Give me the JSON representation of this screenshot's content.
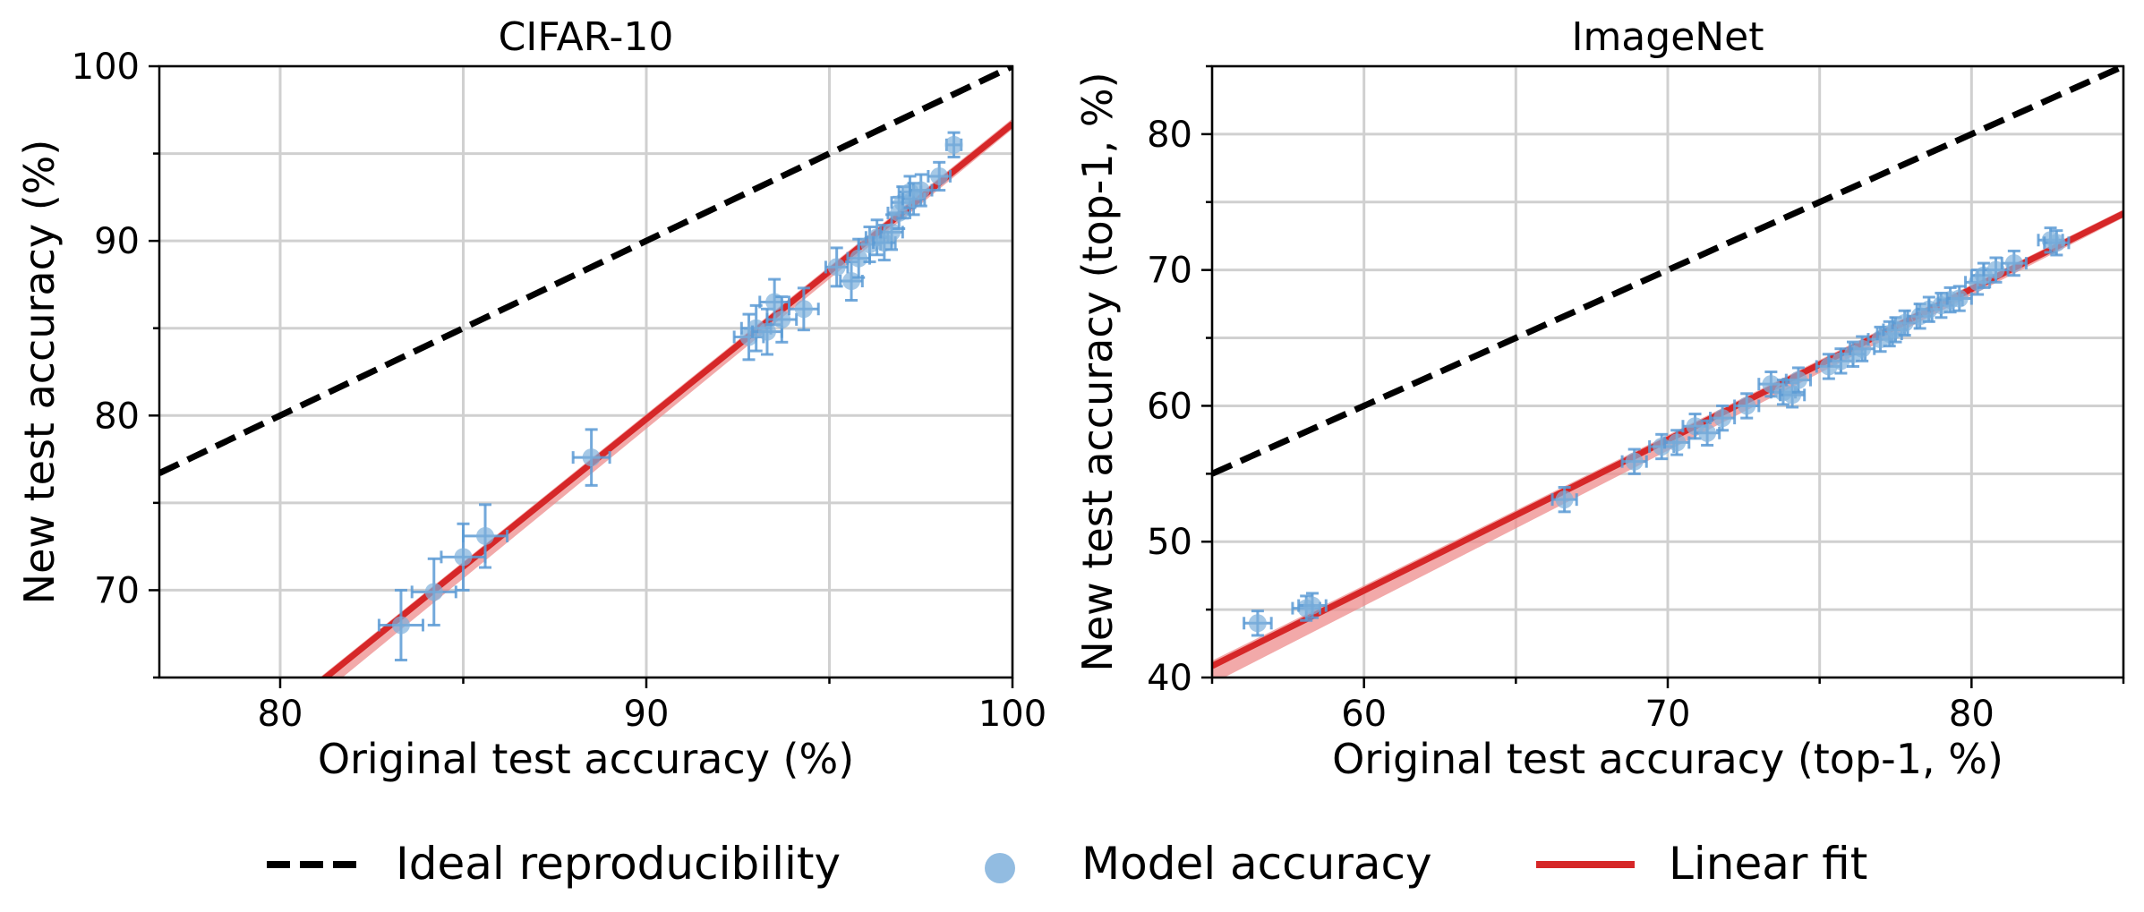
{
  "legend": {
    "ideal_label": "Ideal reproducibility",
    "model_label": "Model accuracy",
    "fit_label": "Linear fit"
  },
  "colors": {
    "ideal": "#000000",
    "points": "#5B9BD5",
    "point_fill": "#7FB0DC",
    "fit": "#D62728",
    "fit_band": "#EE8C8C",
    "grid": "#D0D0D0"
  },
  "chart_data": [
    {
      "type": "scatter",
      "title": "CIFAR-10",
      "xlabel": "Original test accuracy (%)",
      "ylabel": "New test accuracy (%)",
      "xlim": [
        76.7,
        100
      ],
      "ylim": [
        65,
        100
      ],
      "xticks": [
        80,
        90,
        100
      ],
      "yticks": [
        70,
        80,
        90,
        100
      ],
      "grid": true,
      "ideal_line": {
        "slope": 1,
        "intercept": 0
      },
      "fit_line": {
        "slope": 1.69,
        "intercept": -72.3,
        "band_low_x": 82,
        "band_width": 0.9
      },
      "points": [
        {
          "x": 83.3,
          "y": 68.0,
          "xerr": 0.6,
          "yerr": 2.0
        },
        {
          "x": 84.2,
          "y": 69.9,
          "xerr": 0.6,
          "yerr": 1.9
        },
        {
          "x": 85.0,
          "y": 71.9,
          "xerr": 0.6,
          "yerr": 1.9
        },
        {
          "x": 85.6,
          "y": 73.1,
          "xerr": 0.6,
          "yerr": 1.8
        },
        {
          "x": 88.5,
          "y": 77.6,
          "xerr": 0.5,
          "yerr": 1.6
        },
        {
          "x": 92.8,
          "y": 84.5,
          "xerr": 0.4,
          "yerr": 1.3
        },
        {
          "x": 93.0,
          "y": 85.0,
          "xerr": 0.4,
          "yerr": 1.3
        },
        {
          "x": 93.3,
          "y": 84.8,
          "xerr": 0.4,
          "yerr": 1.3
        },
        {
          "x": 93.5,
          "y": 86.5,
          "xerr": 0.4,
          "yerr": 1.3
        },
        {
          "x": 93.7,
          "y": 85.5,
          "xerr": 0.4,
          "yerr": 1.3
        },
        {
          "x": 94.3,
          "y": 86.1,
          "xerr": 0.4,
          "yerr": 1.2
        },
        {
          "x": 95.2,
          "y": 88.5,
          "xerr": 0.3,
          "yerr": 1.1
        },
        {
          "x": 95.6,
          "y": 87.7,
          "xerr": 0.3,
          "yerr": 1.1
        },
        {
          "x": 95.8,
          "y": 89.0,
          "xerr": 0.3,
          "yerr": 1.1
        },
        {
          "x": 96.1,
          "y": 89.8,
          "xerr": 0.3,
          "yerr": 1.0
        },
        {
          "x": 96.3,
          "y": 90.2,
          "xerr": 0.3,
          "yerr": 1.0
        },
        {
          "x": 96.5,
          "y": 89.9,
          "xerr": 0.3,
          "yerr": 1.0
        },
        {
          "x": 96.7,
          "y": 90.5,
          "xerr": 0.3,
          "yerr": 1.0
        },
        {
          "x": 96.9,
          "y": 91.6,
          "xerr": 0.3,
          "yerr": 0.9
        },
        {
          "x": 97.0,
          "y": 92.2,
          "xerr": 0.3,
          "yerr": 0.9
        },
        {
          "x": 97.2,
          "y": 92.8,
          "xerr": 0.3,
          "yerr": 0.9
        },
        {
          "x": 97.3,
          "y": 92.4,
          "xerr": 0.3,
          "yerr": 0.9
        },
        {
          "x": 97.5,
          "y": 92.9,
          "xerr": 0.3,
          "yerr": 0.9
        },
        {
          "x": 98.0,
          "y": 93.7,
          "xerr": 0.3,
          "yerr": 0.8
        },
        {
          "x": 98.4,
          "y": 95.5,
          "xerr": 0.2,
          "yerr": 0.7
        }
      ]
    },
    {
      "type": "scatter",
      "title": "ImageNet",
      "xlabel": "Original test accuracy (top-1, %)",
      "ylabel": "New test accuracy (top-1, %)",
      "xlim": [
        55,
        85
      ],
      "ylim": [
        40,
        85
      ],
      "xticks": [
        60,
        70,
        80
      ],
      "yticks": [
        40,
        50,
        60,
        70,
        80
      ],
      "grid": true,
      "ideal_line": {
        "slope": 1,
        "intercept": 0
      },
      "fit_line": {
        "slope": 1.11,
        "intercept": -20.2,
        "band_low_x": 55,
        "band_width": 1.3
      },
      "points": [
        {
          "x": 56.5,
          "y": 44.0,
          "xerr": 0.45,
          "yerr": 0.9
        },
        {
          "x": 58.1,
          "y": 45.1,
          "xerr": 0.45,
          "yerr": 0.9
        },
        {
          "x": 58.3,
          "y": 45.3,
          "xerr": 0.45,
          "yerr": 0.9
        },
        {
          "x": 66.6,
          "y": 53.1,
          "xerr": 0.4,
          "yerr": 0.9
        },
        {
          "x": 68.9,
          "y": 55.9,
          "xerr": 0.4,
          "yerr": 0.9
        },
        {
          "x": 69.8,
          "y": 57.0,
          "xerr": 0.4,
          "yerr": 0.9
        },
        {
          "x": 70.3,
          "y": 57.3,
          "xerr": 0.4,
          "yerr": 0.9
        },
        {
          "x": 70.9,
          "y": 58.5,
          "xerr": 0.4,
          "yerr": 0.9
        },
        {
          "x": 71.3,
          "y": 58.0,
          "xerr": 0.4,
          "yerr": 0.9
        },
        {
          "x": 71.8,
          "y": 59.1,
          "xerr": 0.4,
          "yerr": 0.9
        },
        {
          "x": 72.6,
          "y": 60.0,
          "xerr": 0.4,
          "yerr": 0.9
        },
        {
          "x": 73.4,
          "y": 61.6,
          "xerr": 0.4,
          "yerr": 0.9
        },
        {
          "x": 73.8,
          "y": 61.0,
          "xerr": 0.4,
          "yerr": 0.9
        },
        {
          "x": 74.1,
          "y": 60.8,
          "xerr": 0.4,
          "yerr": 0.9
        },
        {
          "x": 74.3,
          "y": 61.9,
          "xerr": 0.4,
          "yerr": 0.9
        },
        {
          "x": 75.3,
          "y": 62.9,
          "xerr": 0.4,
          "yerr": 0.9
        },
        {
          "x": 75.7,
          "y": 63.3,
          "xerr": 0.4,
          "yerr": 0.9
        },
        {
          "x": 76.1,
          "y": 63.8,
          "xerr": 0.4,
          "yerr": 0.9
        },
        {
          "x": 76.4,
          "y": 64.2,
          "xerr": 0.4,
          "yerr": 0.9
        },
        {
          "x": 77.0,
          "y": 64.9,
          "xerr": 0.4,
          "yerr": 0.9
        },
        {
          "x": 77.3,
          "y": 65.3,
          "xerr": 0.4,
          "yerr": 0.9
        },
        {
          "x": 77.5,
          "y": 65.6,
          "xerr": 0.4,
          "yerr": 0.9
        },
        {
          "x": 77.8,
          "y": 66.1,
          "xerr": 0.4,
          "yerr": 0.9
        },
        {
          "x": 78.3,
          "y": 66.6,
          "xerr": 0.4,
          "yerr": 0.9
        },
        {
          "x": 78.6,
          "y": 67.1,
          "xerr": 0.4,
          "yerr": 0.9
        },
        {
          "x": 79.0,
          "y": 67.4,
          "xerr": 0.4,
          "yerr": 0.9
        },
        {
          "x": 79.3,
          "y": 67.8,
          "xerr": 0.4,
          "yerr": 0.9
        },
        {
          "x": 79.6,
          "y": 67.9,
          "xerr": 0.4,
          "yerr": 0.9
        },
        {
          "x": 80.2,
          "y": 69.1,
          "xerr": 0.4,
          "yerr": 0.9
        },
        {
          "x": 80.4,
          "y": 69.6,
          "xerr": 0.4,
          "yerr": 0.9
        },
        {
          "x": 80.8,
          "y": 70.0,
          "xerr": 0.4,
          "yerr": 0.9
        },
        {
          "x": 81.4,
          "y": 70.5,
          "xerr": 0.4,
          "yerr": 0.9
        },
        {
          "x": 82.6,
          "y": 72.2,
          "xerr": 0.4,
          "yerr": 0.9
        },
        {
          "x": 82.8,
          "y": 72.0,
          "xerr": 0.4,
          "yerr": 0.9
        }
      ]
    }
  ]
}
